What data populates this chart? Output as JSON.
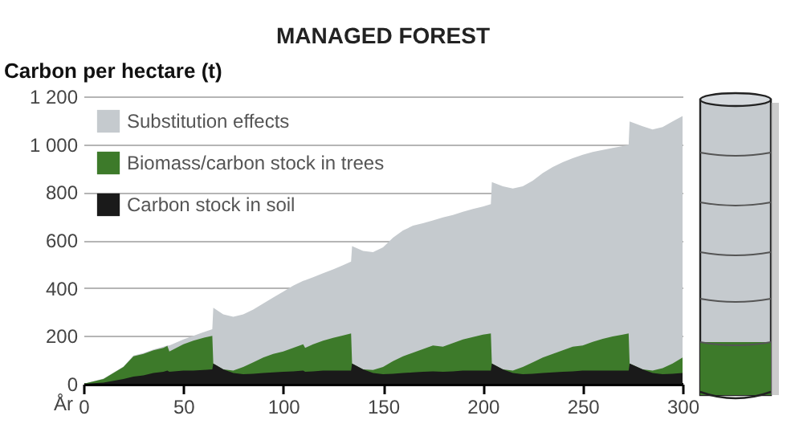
{
  "chart_data": {
    "type": "area",
    "title": "MANAGED FOREST",
    "ylabel": "Carbon per hectare (t)",
    "xlabel": "År",
    "x": [
      0,
      10,
      20,
      25,
      30,
      35,
      40,
      42,
      43,
      50,
      55,
      60,
      64.5,
      65,
      70,
      75,
      80,
      85,
      90,
      95,
      100,
      105,
      110,
      111,
      115,
      120,
      125,
      130,
      134,
      134.5,
      140,
      145,
      150,
      155,
      160,
      165,
      170,
      175,
      180,
      185,
      190,
      195,
      200,
      204,
      204.5,
      210,
      215,
      220,
      225,
      230,
      235,
      240,
      245,
      250,
      255,
      260,
      265,
      270,
      273,
      273.5,
      280,
      285,
      290,
      295,
      300
    ],
    "series": [
      {
        "name": "Substitution effects",
        "color": "#c5cace",
        "values": [
          0,
          22,
          72,
          118,
          128,
          143,
          155,
          160,
          160,
          185,
          200,
          215,
          228,
          318,
          290,
          280,
          290,
          310,
          335,
          360,
          385,
          410,
          430,
          432,
          445,
          462,
          478,
          495,
          510,
          575,
          555,
          550,
          570,
          610,
          640,
          660,
          670,
          682,
          695,
          705,
          718,
          730,
          740,
          750,
          842,
          825,
          815,
          825,
          848,
          880,
          905,
          925,
          942,
          956,
          968,
          976,
          985,
          992,
          998,
          1095,
          1075,
          1062,
          1072,
          1095,
          1118
        ]
      },
      {
        "name": "Biomass/carbon stock in trees",
        "color": "#3d7a2a",
        "values": [
          0,
          20,
          70,
          115,
          125,
          140,
          150,
          158,
          135,
          165,
          180,
          192,
          200,
          85,
          60,
          55,
          70,
          90,
          110,
          125,
          135,
          150,
          165,
          150,
          165,
          180,
          192,
          202,
          210,
          85,
          60,
          58,
          70,
          95,
          115,
          130,
          145,
          160,
          155,
          170,
          185,
          195,
          205,
          210,
          85,
          60,
          55,
          70,
          90,
          110,
          125,
          140,
          155,
          160,
          175,
          188,
          198,
          205,
          210,
          85,
          60,
          55,
          65,
          85,
          110
        ]
      },
      {
        "name": "Carbon stock in soil",
        "color": "#1a1a1a",
        "values": [
          0,
          5,
          20,
          30,
          35,
          45,
          50,
          55,
          50,
          55,
          55,
          58,
          60,
          85,
          60,
          45,
          40,
          42,
          45,
          48,
          50,
          52,
          55,
          50,
          52,
          55,
          55,
          55,
          55,
          85,
          60,
          45,
          40,
          42,
          45,
          48,
          50,
          52,
          50,
          52,
          55,
          55,
          55,
          55,
          85,
          60,
          45,
          40,
          42,
          45,
          48,
          50,
          52,
          55,
          55,
          55,
          55,
          55,
          55,
          85,
          60,
          45,
          40,
          42,
          45
        ]
      }
    ],
    "xlim": [
      0,
      300
    ],
    "xticks": [
      0,
      50,
      100,
      150,
      200,
      250,
      300
    ],
    "ylim": [
      0,
      1200
    ],
    "yticks": [
      0,
      200,
      400,
      600,
      800,
      {
        "value": 1000,
        "label": "1 000"
      },
      {
        "value": 1200,
        "label": "1 200"
      }
    ],
    "grid": "y",
    "legend": "top left"
  }
}
